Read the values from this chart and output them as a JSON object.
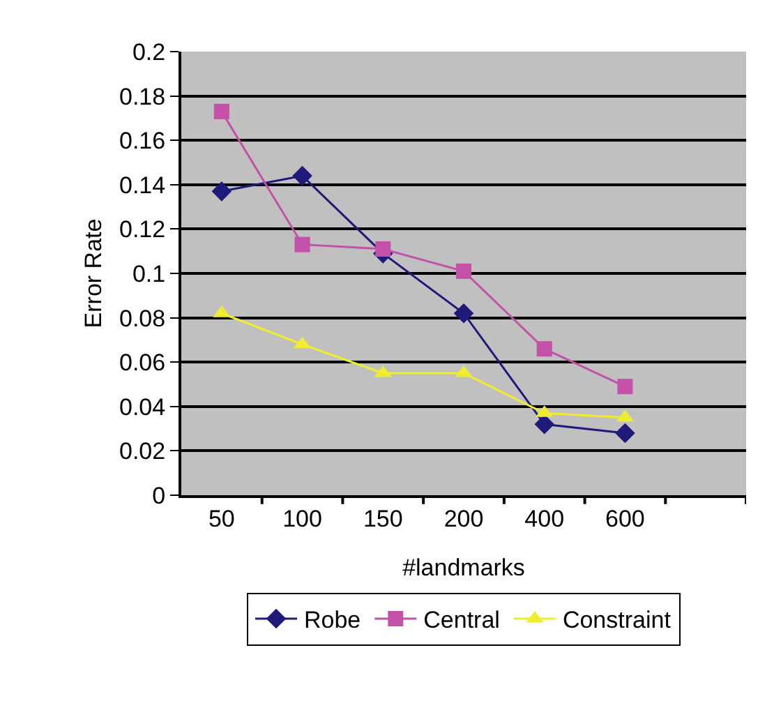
{
  "chart_data": {
    "type": "line",
    "xlabel": "#landmarks",
    "ylabel": "Error Rate",
    "categories": [
      "50",
      "100",
      "150",
      "200",
      "400",
      "600",
      null
    ],
    "series": [
      {
        "name": "Robe",
        "color": "#1f1a7a",
        "marker": "diamond",
        "values": [
          0.137,
          0.144,
          0.109,
          0.082,
          0.032,
          0.028,
          null
        ]
      },
      {
        "name": "Central",
        "color": "#c351a8",
        "marker": "square",
        "values": [
          0.173,
          0.113,
          0.111,
          0.101,
          0.066,
          0.049,
          null
        ]
      },
      {
        "name": "Constraint",
        "color": "#f0ec2e",
        "marker": "triangle",
        "values": [
          0.082,
          0.068,
          0.055,
          0.055,
          0.037,
          0.035,
          null
        ]
      }
    ],
    "ylim": [
      0,
      0.2
    ],
    "yticks": [
      {
        "value": 0,
        "label": "0"
      },
      0.02,
      0.04,
      0.06,
      0.08,
      {
        "value": 0.1,
        "label": "0.1"
      },
      0.12,
      0.14,
      0.16,
      0.18,
      {
        "value": 0.2,
        "label": "0.2"
      }
    ],
    "grid": "y",
    "legend": "bottom",
    "line_style": "solid"
  }
}
